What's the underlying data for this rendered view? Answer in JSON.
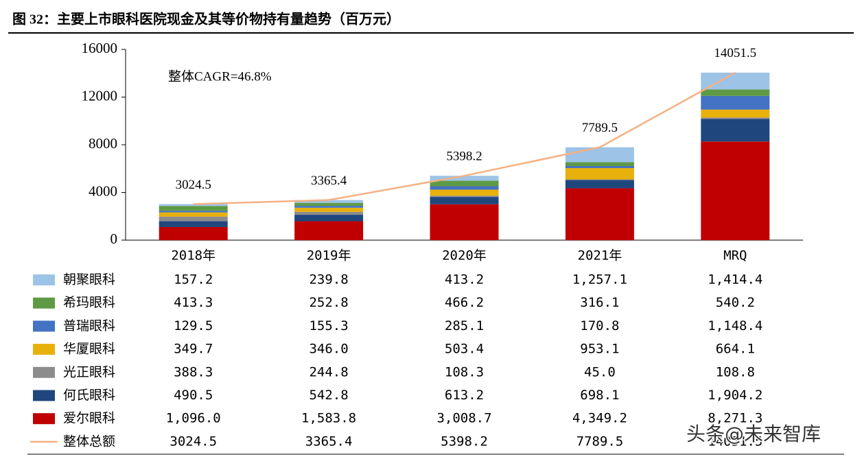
{
  "chart_data": {
    "type": "bar",
    "stacked": true,
    "title": "图 32：主要上市眼科医院现金及其等价物持有量趋势（百万元）",
    "annotation": "整体CAGR=46.8%",
    "watermark": "头条@未来智库",
    "categories": [
      "2018年",
      "2019年",
      "2020年",
      "2021年",
      "MRQ"
    ],
    "ylim": [
      0,
      16000
    ],
    "yticks": [
      0,
      4000,
      8000,
      12000,
      16000
    ],
    "grid": false,
    "series": [
      {
        "name": "朝聚眼科",
        "color": "#9dc3e6",
        "values": [
          157.2,
          239.8,
          413.2,
          1257.1,
          1414.4
        ],
        "value_labels": [
          "157.2",
          "239.8",
          "413.2",
          "1,257.1",
          "1,414.4"
        ]
      },
      {
        "name": "希玛眼科",
        "color": "#5e9a46",
        "values": [
          413.3,
          252.8,
          466.2,
          316.1,
          540.2
        ],
        "value_labels": [
          "413.3",
          "252.8",
          "466.2",
          "316.1",
          "540.2"
        ]
      },
      {
        "name": "普瑞眼科",
        "color": "#4472c4",
        "values": [
          129.5,
          155.3,
          285.1,
          170.8,
          1148.4
        ],
        "value_labels": [
          "129.5",
          "155.3",
          "285.1",
          "170.8",
          "1,148.4"
        ]
      },
      {
        "name": "华厦眼科",
        "color": "#e8b00b",
        "values": [
          349.7,
          346.0,
          503.4,
          953.1,
          664.1
        ],
        "value_labels": [
          "349.7",
          "346.0",
          "503.4",
          "953.1",
          "664.1"
        ]
      },
      {
        "name": "光正眼科",
        "color": "#8c8c8c",
        "values": [
          388.3,
          244.8,
          108.3,
          45.0,
          108.8
        ],
        "value_labels": [
          "388.3",
          "244.8",
          "108.3",
          "45.0",
          "108.8"
        ]
      },
      {
        "name": "何氏眼科",
        "color": "#1f477d",
        "values": [
          490.5,
          542.8,
          613.2,
          698.1,
          1904.2
        ],
        "value_labels": [
          "490.5",
          "542.8",
          "613.2",
          "698.1",
          "1,904.2"
        ]
      },
      {
        "name": "爱尔眼科",
        "color": "#c00000",
        "values": [
          1096.0,
          1583.8,
          3008.7,
          4349.2,
          8271.3
        ],
        "value_labels": [
          "1,096.0",
          "1,583.8",
          "3,008.7",
          "4,349.2",
          "8,271.3"
        ]
      },
      {
        "name": "整体总额",
        "type": "line",
        "color": "#f4b183",
        "values": [
          3024.5,
          3365.4,
          5398.2,
          7789.5,
          14051.5
        ]
      }
    ]
  }
}
